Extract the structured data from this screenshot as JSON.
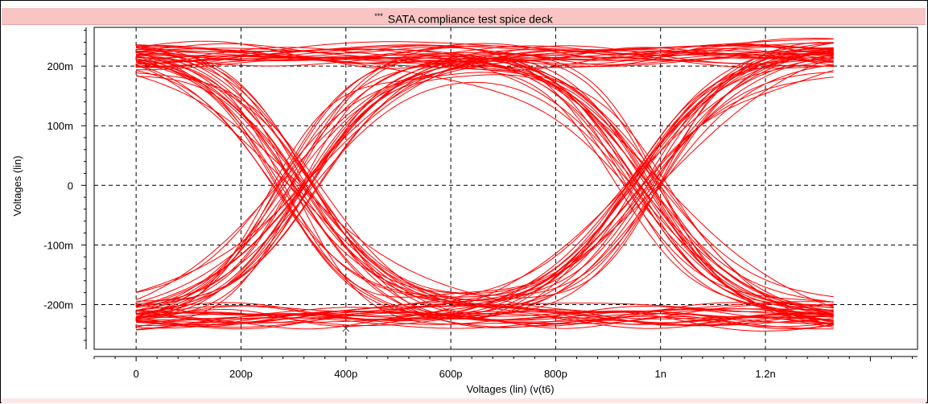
{
  "window": {
    "title_prefix": "***",
    "title": "SATA compliance test spice deck"
  },
  "colors": {
    "trace": "#ff0000",
    "title_background": "#f9c4c4",
    "grid": "#000000"
  },
  "chart_data": {
    "type": "line",
    "subtype": "eye-diagram",
    "title": "SATA compliance test spice deck",
    "xlabel": "Voltages (lin) (v(t6)",
    "ylabel": "Voltages (lin)",
    "xlim": [
      -8e-11,
      1.49e-09
    ],
    "ylim": [
      -0.275,
      0.265
    ],
    "x_ticks": [
      0,
      2e-10,
      4e-10,
      6e-10,
      8e-10,
      1e-09,
      1.2e-09
    ],
    "x_tick_labels": [
      "0",
      "200p",
      "400p",
      "600p",
      "800p",
      "1n",
      "1.2n"
    ],
    "y_ticks": [
      0.2,
      0.1,
      0,
      -0.1,
      -0.2
    ],
    "y_tick_labels": [
      "200m",
      "100m",
      "0",
      "-100m",
      "-200m"
    ],
    "grid": true,
    "grid_style": "dashed",
    "unit_interval": 6.667e-10,
    "crossing_times": [
      3e-10,
      9.667e-10
    ],
    "levels": [
      0.22,
      -0.22
    ],
    "x_range_traces": [
      0,
      1.33e-09
    ],
    "marker": {
      "x": 4e-10,
      "y": -0.24,
      "symbol": "x"
    }
  }
}
